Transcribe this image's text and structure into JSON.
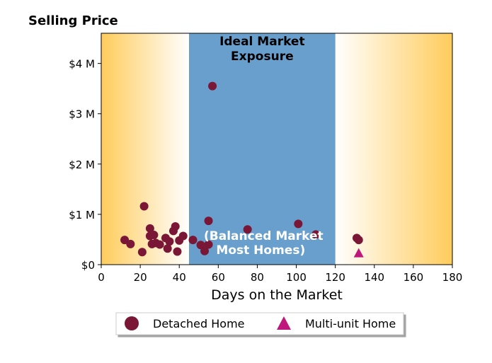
{
  "chart_data": {
    "type": "scatter",
    "title": "Selling Price",
    "xlabel": "Days on the Market",
    "ylabel": "",
    "xlim": [
      0,
      180
    ],
    "ylim": [
      0,
      4600000
    ],
    "x_ticks": [
      0,
      20,
      40,
      60,
      80,
      100,
      120,
      140,
      160,
      180
    ],
    "x_tick_labels": [
      "0",
      "20",
      "40",
      "60",
      "80",
      "100",
      "120",
      "140",
      "160",
      "180"
    ],
    "y_ticks": [
      0,
      1000000,
      2000000,
      3000000,
      4000000
    ],
    "y_tick_labels": [
      "$0",
      "$1 M",
      "$2 M",
      "$3 M",
      "$4 M"
    ],
    "grid": false,
    "legend_position": "bottom-center",
    "ideal_band": {
      "x_start": 45,
      "x_end": 120,
      "title_line1": "Ideal Market",
      "title_line2": "Exposure",
      "note_line1": "(Balanced Market",
      "note_line2": "Most Homes)",
      "color": "#689fcc"
    },
    "gradient_color": "#ffcc5c",
    "series": [
      {
        "name": "Detached Home",
        "marker": "circle",
        "color": "#7a1636",
        "points": [
          [
            12,
            490000
          ],
          [
            15,
            410000
          ],
          [
            21,
            250000
          ],
          [
            22,
            1160000
          ],
          [
            25,
            720000
          ],
          [
            25,
            570000
          ],
          [
            26,
            410000
          ],
          [
            27,
            590000
          ],
          [
            28,
            430000
          ],
          [
            30,
            400000
          ],
          [
            33,
            530000
          ],
          [
            34,
            320000
          ],
          [
            35,
            460000
          ],
          [
            37,
            670000
          ],
          [
            38,
            760000
          ],
          [
            39,
            260000
          ],
          [
            40,
            480000
          ],
          [
            42,
            570000
          ],
          [
            47,
            490000
          ],
          [
            51,
            390000
          ],
          [
            53,
            270000
          ],
          [
            55,
            400000
          ],
          [
            55,
            870000
          ],
          [
            57,
            3550000
          ],
          [
            75,
            700000
          ],
          [
            101,
            810000
          ],
          [
            110,
            600000
          ],
          [
            131,
            530000
          ],
          [
            132,
            490000
          ]
        ]
      },
      {
        "name": "Multi-unit Home",
        "marker": "triangle",
        "color": "#c0177c",
        "points": [
          [
            132,
            230000
          ]
        ]
      }
    ]
  }
}
